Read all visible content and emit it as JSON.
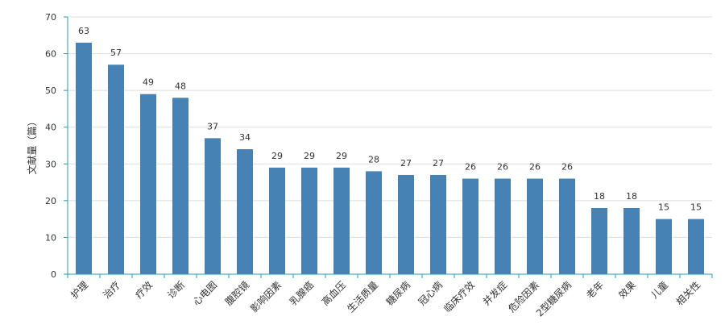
{
  "chart_data": {
    "type": "bar",
    "ylabel": "文献量（篇）",
    "categories": [
      "护理",
      "治疗",
      "疗效",
      "诊断",
      "心电图",
      "腹腔镜",
      "影响因素",
      "乳腺癌",
      "高血压",
      "生活质量",
      "糖尿病",
      "冠心病",
      "临床疗效",
      "并发症",
      "危险因素",
      "2型糖尿病",
      "老年",
      "效果",
      "儿童",
      "相关性"
    ],
    "values": [
      63,
      57,
      49,
      48,
      37,
      34,
      29,
      29,
      29,
      28,
      27,
      27,
      26,
      26,
      26,
      26,
      18,
      18,
      15,
      15
    ],
    "ylim": [
      0,
      70
    ],
    "yticks": [
      0,
      10,
      20,
      30,
      40,
      50,
      60,
      70
    ],
    "grid": true,
    "colors": {
      "bar": "#4682b4",
      "grid": "#dddddd",
      "axis": "#1f9fb3"
    }
  }
}
